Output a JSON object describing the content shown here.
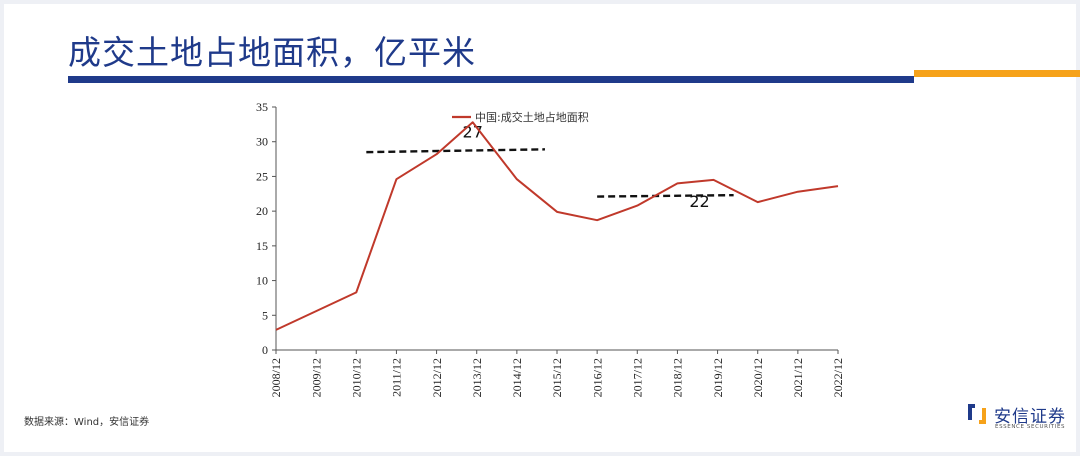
{
  "page": {
    "title": "成交土地占地面积，亿平米",
    "source": "数据来源：Wind，安信证券",
    "logo": {
      "name": "安信证券",
      "subtitle": "ESSENCE SECURITIES"
    },
    "colors": {
      "title": "#1f3a8a",
      "rule_blue": "#1f3a8a",
      "rule_orange": "#f6a21a"
    }
  },
  "chart_data": {
    "type": "line",
    "title": "",
    "xlabel": "",
    "ylabel": "",
    "categories": [
      "2008/12",
      "2009/12",
      "2010/12",
      "2011/12",
      "2012/12",
      "2013/12",
      "2014/12",
      "2015/12",
      "2016/12",
      "2017/12",
      "2018/12",
      "2019/12",
      "2020/12",
      "2021/12",
      "2022/12"
    ],
    "series": [
      {
        "name": "中国:成交土地占地面积",
        "color": "#c0392b",
        "x": [
          0,
          1,
          2,
          3,
          4,
          4.9,
          6,
          7,
          8,
          9,
          10,
          10.9,
          12,
          13,
          14
        ],
        "values": [
          2.9,
          5.6,
          8.3,
          24.6,
          28.2,
          32.8,
          24.6,
          19.9,
          18.7,
          20.8,
          24.0,
          24.5,
          21.3,
          22.8,
          23.6
        ]
      }
    ],
    "ylim": [
      0,
      35
    ],
    "yticks": [
      0,
      5,
      10,
      15,
      20,
      25,
      30,
      35
    ],
    "grid": false,
    "legend": "top-center",
    "annotations": [
      {
        "label": "27",
        "x_start": 2.25,
        "x_end": 6.7,
        "y_start": 28.5,
        "y_end": 28.9,
        "style": "dashed",
        "color": "#111111"
      },
      {
        "label": "22",
        "x_start": 8.0,
        "x_end": 11.4,
        "y_start": 22.1,
        "y_end": 22.3,
        "style": "dashed",
        "color": "#111111"
      }
    ]
  }
}
